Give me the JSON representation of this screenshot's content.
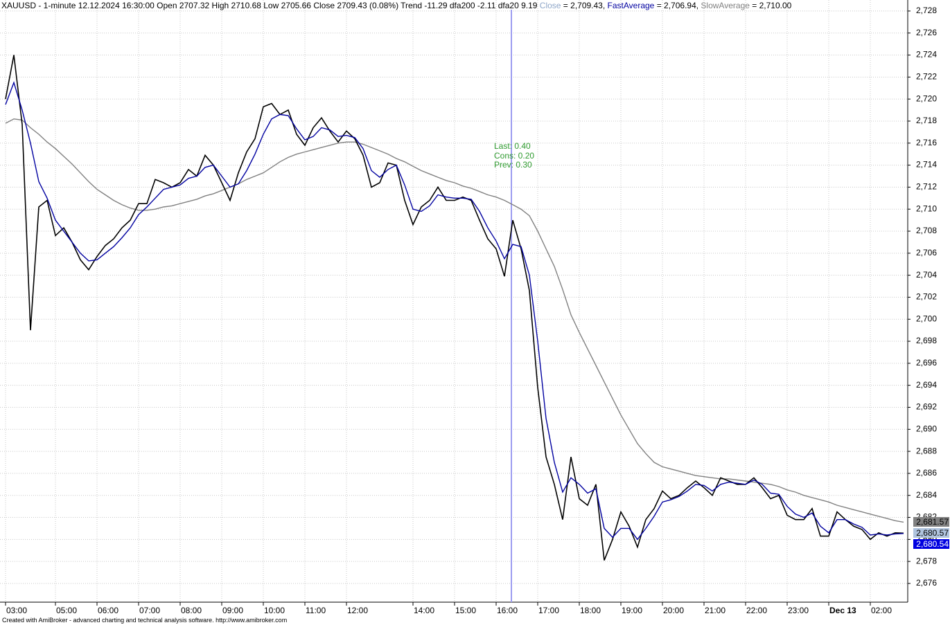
{
  "chart_data": {
    "type": "line",
    "title": "XAUUSD - 1-minute 12.12.2024 16:30:00 Open 2707.32 High 2710.68 Low 2705.66 Close 2709.43 (0.08%) Trend -11.29 dfa200 -2.11 dfa20 9.19",
    "annotations": [
      "Last: 0.40",
      "Cons: 0.20",
      "Prev: 0.30"
    ],
    "footer": "Created with AmiBroker - advanced charting and technical analysis software. http://www.amibroker.com",
    "categories": [
      "03:00",
      null,
      null,
      null,
      null,
      null,
      "05:00",
      null,
      null,
      null,
      null,
      "06:00",
      null,
      null,
      null,
      null,
      "07:00",
      null,
      null,
      null,
      null,
      "08:00",
      null,
      null,
      null,
      null,
      "09:00",
      null,
      null,
      null,
      null,
      "10:00",
      null,
      null,
      null,
      null,
      "11:00",
      null,
      null,
      null,
      null,
      "12:00",
      null,
      null,
      null,
      null,
      null,
      null,
      null,
      "14:00",
      null,
      null,
      null,
      null,
      "15:00",
      null,
      null,
      null,
      null,
      "16:00",
      null,
      null,
      null,
      null,
      "17:00",
      null,
      null,
      null,
      null,
      "18:00",
      null,
      null,
      null,
      null,
      "19:00",
      null,
      null,
      null,
      null,
      "20:00",
      null,
      null,
      null,
      null,
      "21:00",
      null,
      null,
      null,
      null,
      "22:00",
      null,
      null,
      null,
      null,
      "23:00",
      null,
      null,
      null,
      null,
      "Dec 13",
      null,
      null,
      null,
      null,
      "02:00",
      null,
      null,
      null,
      null
    ],
    "series": [
      {
        "name": "Close",
        "color": "#000000",
        "label_color": "#8ea6c8",
        "tag_background": "#b0c4de",
        "tag_text": "#000000",
        "readout": " = 2,709.43, ",
        "last_value_label": "2,680.57",
        "values": [
          2720,
          2724,
          2717.7,
          2699,
          2710.2,
          2710.8,
          2707.6,
          2708.3,
          2707,
          2705.4,
          2704.5,
          2705.7,
          2706.7,
          2707.3,
          2708.3,
          2709,
          2710.5,
          2710.5,
          2712.7,
          2712.4,
          2712,
          2712.4,
          2713.6,
          2713,
          2714.9,
          2714,
          2712.4,
          2710.8,
          2713.3,
          2715.2,
          2716.4,
          2719.3,
          2719.6,
          2718.6,
          2719,
          2716.8,
          2715.8,
          2717.4,
          2718.3,
          2717.1,
          2716.1,
          2717.1,
          2716.4,
          2714.9,
          2712,
          2712.4,
          2714.2,
          2714,
          2710.8,
          2708.6,
          2710.2,
          2710.8,
          2712,
          2710.8,
          2710.8,
          2711.1,
          2710.8,
          2709,
          2707.3,
          2706.4,
          2703.9,
          2709,
          2706.4,
          2702.6,
          2693.8,
          2687.5,
          2685,
          2681.8,
          2687.5,
          2683.7,
          2683.1,
          2685,
          2678.1,
          2680,
          2682.5,
          2681.2,
          2679.3,
          2681.8,
          2682.8,
          2684.4,
          2683.7,
          2684,
          2684.7,
          2685.3,
          2684.7,
          2684,
          2685.6,
          2685.3,
          2685,
          2685,
          2685.6,
          2684.7,
          2683.7,
          2684,
          2682.2,
          2681.8,
          2681.8,
          2682.8,
          2680.3,
          2680.3,
          2682.5,
          2681.8,
          2681.2,
          2680.9,
          2680,
          2680.6,
          2680.3,
          2680.6,
          2680.57
        ]
      },
      {
        "name": "FastAverage",
        "color": "#0000a0",
        "label_color": "#0000a0",
        "tag_background": "#0000e0",
        "tag_text": "#ffffff",
        "readout": " = 2,706.94, ",
        "last_value_label": "2,680.54",
        "values": [
          2719.5,
          2721.5,
          2719,
          2716,
          2712.5,
          2711,
          2709,
          2708,
          2707,
          2706,
          2705.3,
          2705.4,
          2706,
          2706.6,
          2707.4,
          2708.3,
          2709.5,
          2710.2,
          2711,
          2711.8,
          2712,
          2712.2,
          2712.8,
          2713,
          2713.8,
          2714,
          2713,
          2712,
          2712.3,
          2713.5,
          2715,
          2716.8,
          2718.2,
          2718.6,
          2718.5,
          2717.3,
          2716.3,
          2716.6,
          2717.4,
          2717.2,
          2716.6,
          2716.7,
          2716.5,
          2715.5,
          2713.5,
          2712.9,
          2713.6,
          2714,
          2712.2,
          2710,
          2709.8,
          2710.3,
          2711.3,
          2711.1,
          2711,
          2711,
          2710.9,
          2709.8,
          2708.3,
          2707.1,
          2705.5,
          2706.8,
          2706.6,
          2704,
          2698,
          2691,
          2687,
          2684.3,
          2685.6,
          2685,
          2684.2,
          2684.6,
          2681,
          2680.2,
          2681,
          2681,
          2680,
          2681,
          2682.1,
          2683.4,
          2683.6,
          2683.9,
          2684.4,
          2685,
          2684.9,
          2684.4,
          2685,
          2685.2,
          2685.1,
          2685,
          2685.4,
          2685,
          2684.2,
          2684.1,
          2683,
          2682.3,
          2682,
          2682.4,
          2681.2,
          2680.6,
          2681.8,
          2681.8,
          2681.4,
          2681.1,
          2680.4,
          2680.5,
          2680.4,
          2680.5,
          2680.54
        ]
      },
      {
        "name": "SlowAverage",
        "color": "#808080",
        "label_color": "#808080",
        "tag_background": "#808080",
        "tag_text": "#000000",
        "readout": " = 2,710.00",
        "last_value_label": "2,681.57",
        "values": [
          2717.8,
          2718.2,
          2718.1,
          2717.4,
          2716.8,
          2716.1,
          2715.5,
          2714.8,
          2714.1,
          2713.3,
          2712.5,
          2711.8,
          2711.3,
          2710.8,
          2710.4,
          2710.1,
          2709.9,
          2709.9,
          2710,
          2710.2,
          2710.3,
          2710.5,
          2710.7,
          2710.9,
          2711.2,
          2711.4,
          2711.7,
          2712,
          2712.3,
          2712.7,
          2713,
          2713.3,
          2713.8,
          2714.3,
          2714.7,
          2715,
          2715.2,
          2715.4,
          2715.6,
          2715.8,
          2716,
          2716.1,
          2716.1,
          2715.9,
          2715.6,
          2715.3,
          2715,
          2714.6,
          2714.3,
          2713.9,
          2713.5,
          2713.2,
          2712.9,
          2712.6,
          2712.4,
          2712.1,
          2711.9,
          2711.6,
          2711.3,
          2711.1,
          2710.8,
          2710.4,
          2710,
          2709.4,
          2708,
          2706.4,
          2704.8,
          2702.7,
          2700.4,
          2698.8,
          2697.3,
          2695.8,
          2694.3,
          2692.8,
          2691.3,
          2690,
          2688.7,
          2687.8,
          2687,
          2686.6,
          2686.4,
          2686.2,
          2686,
          2685.8,
          2685.7,
          2685.6,
          2685.5,
          2685.5,
          2685.4,
          2685.3,
          2685.2,
          2685.1,
          2685,
          2684.8,
          2684.5,
          2684.3,
          2684,
          2683.8,
          2683.6,
          2683.4,
          2683.1,
          2682.9,
          2682.7,
          2682.5,
          2682.3,
          2682.1,
          2681.9,
          2681.7,
          2681.57
        ]
      }
    ],
    "ylim": [
      2674.3,
      2729
    ],
    "yticks": [
      {
        "value": 2676,
        "label": "2,676"
      },
      {
        "value": 2678,
        "label": "2,678"
      },
      {
        "value": 2680,
        "label": "2,680"
      },
      {
        "value": 2682,
        "label": "2,682"
      },
      {
        "value": 2684,
        "label": "2,684"
      },
      {
        "value": 2686,
        "label": "2,686"
      },
      {
        "value": 2688,
        "label": "2,688"
      },
      {
        "value": 2690,
        "label": "2,690"
      },
      {
        "value": 2692,
        "label": "2,692"
      },
      {
        "value": 2694,
        "label": "2,694"
      },
      {
        "value": 2696,
        "label": "2,696"
      },
      {
        "value": 2698,
        "label": "2,698"
      },
      {
        "value": 2700,
        "label": "2,700"
      },
      {
        "value": 2702,
        "label": "2,702"
      },
      {
        "value": 2704,
        "label": "2,704"
      },
      {
        "value": 2706,
        "label": "2,706"
      },
      {
        "value": 2708,
        "label": "2,708"
      },
      {
        "value": 2710,
        "label": "2,710"
      },
      {
        "value": 2712,
        "label": "2,712"
      },
      {
        "value": 2714,
        "label": "2,714"
      },
      {
        "value": 2716,
        "label": "2,716"
      },
      {
        "value": 2718,
        "label": "2,718"
      },
      {
        "value": 2720,
        "label": "2,720"
      },
      {
        "value": 2722,
        "label": "2,722"
      },
      {
        "value": 2724,
        "label": "2,724"
      },
      {
        "value": 2726,
        "label": "2,726"
      },
      {
        "value": 2728,
        "label": "2,728"
      }
    ],
    "grid": true
  }
}
